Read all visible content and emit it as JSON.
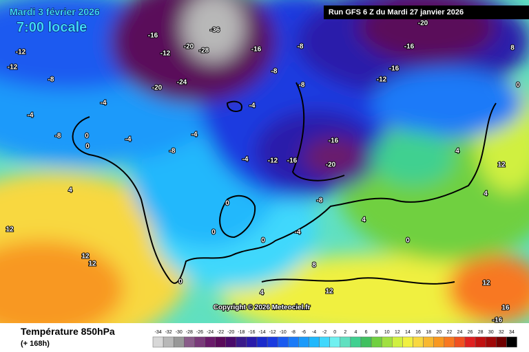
{
  "header": {
    "date": "Mardi 3 février 2026",
    "time": "7:00 locale",
    "run": "Run GFS 6 Z du Mardi 27 janvier 2026"
  },
  "copyright": "Copyright © 2026 Meteociel.fr",
  "footer": {
    "title": "Température 850hPa",
    "subtitle": "(+ 168h)"
  },
  "map_labels": [
    -12,
    -12,
    -8,
    -4,
    -4,
    -8,
    0,
    0,
    -4,
    4,
    12,
    12,
    12,
    -16,
    -12,
    -20,
    -24,
    -20,
    -28,
    -36,
    -16,
    -8,
    -8,
    -8,
    -16,
    -16,
    -12,
    -20,
    -16,
    -20,
    -12,
    -16,
    -8,
    -4,
    -4,
    -4,
    0,
    0,
    0,
    -4,
    -8,
    4,
    0,
    4,
    8,
    0,
    12,
    4,
    8,
    4,
    12,
    12,
    16,
    -16,
    0
  ],
  "scale": {
    "values": [
      -34,
      -32,
      -30,
      -28,
      -26,
      -24,
      -22,
      -20,
      -18,
      -16,
      -14,
      -12,
      -10,
      -8,
      -6,
      -4,
      -2,
      0,
      2,
      4,
      6,
      8,
      10,
      12,
      14,
      16,
      18,
      20,
      22,
      24,
      26,
      28,
      30,
      32,
      34
    ],
    "colors": [
      "#d8d8d8",
      "#b8b8b8",
      "#989898",
      "#8a5c8a",
      "#7a3a7a",
      "#6a1a6a",
      "#5a0a5a",
      "#4a0a6a",
      "#3a1a8a",
      "#2a1aaa",
      "#1a2acc",
      "#1a3ae0",
      "#1a5af0",
      "#1a7af8",
      "#1a9afa",
      "#20b8fc",
      "#40d8fc",
      "#70f0f0",
      "#60e0c0",
      "#40d090",
      "#40c060",
      "#70d040",
      "#a0e040",
      "#d0f040",
      "#f0f040",
      "#f8d840",
      "#f8b830",
      "#f89820",
      "#f87820",
      "#f05020",
      "#e02020",
      "#c01010",
      "#a00808",
      "#700000",
      "#000000"
    ]
  }
}
